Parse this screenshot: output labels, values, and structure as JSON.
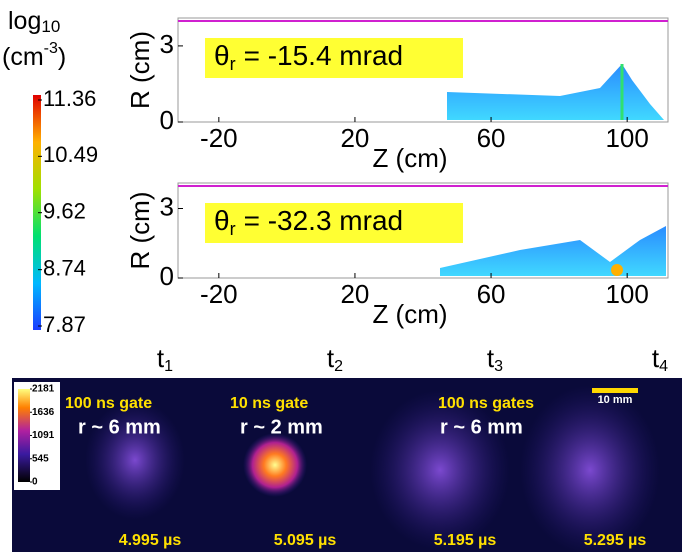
{
  "colorbar": {
    "title": {
      "base": "log",
      "sub": "10",
      "unit": "(cm",
      "sup": "-3",
      "close": ")"
    },
    "range": [
      7.87,
      11.36
    ],
    "ticks": [
      11.36,
      10.49,
      9.62,
      8.74,
      7.87
    ]
  },
  "panels": [
    {
      "annotation": {
        "symbol": "θ",
        "sub": "r",
        "text": "= -15.4 mrad"
      },
      "ylabel": "R (cm)",
      "xlabel": "Z (cm)",
      "xlim": [
        -32,
        112
      ],
      "xticks": [
        -20,
        20,
        60,
        100
      ],
      "ylim": [
        0,
        4.1
      ],
      "yticks": [
        0,
        3
      ]
    },
    {
      "annotation": {
        "symbol": "θ",
        "sub": "r",
        "text": "= -32.3 mrad"
      },
      "ylabel": "R (cm)",
      "xlabel": "Z (cm)",
      "xlim": [
        -32,
        112
      ],
      "xticks": [
        -20,
        20,
        60,
        100
      ],
      "ylim": [
        0,
        4.1
      ],
      "yticks": [
        0,
        3
      ]
    }
  ],
  "images": {
    "colorbar_range": [
      0,
      2181
    ],
    "colorbar_ticks": [
      2181,
      1636,
      1091,
      545,
      0
    ],
    "scale_bar": "10 mm",
    "frames": [
      {
        "time_label": {
          "base": "t",
          "sub": "1"
        },
        "gate": "100 ns gate",
        "radius": "r ~ 6 mm",
        "timestamp": "4.995 µs"
      },
      {
        "time_label": {
          "base": "t",
          "sub": "2"
        },
        "gate": "10 ns gate",
        "radius": "r ~ 2 mm",
        "timestamp": "5.095 µs"
      },
      {
        "time_label": {
          "base": "t",
          "sub": "3"
        },
        "gate": "100 ns gates",
        "radius": "r ~ 6 mm",
        "timestamp": "5.195 µs"
      },
      {
        "time_label": {
          "base": "t",
          "sub": "4"
        },
        "timestamp": "5.295 µs"
      }
    ]
  }
}
